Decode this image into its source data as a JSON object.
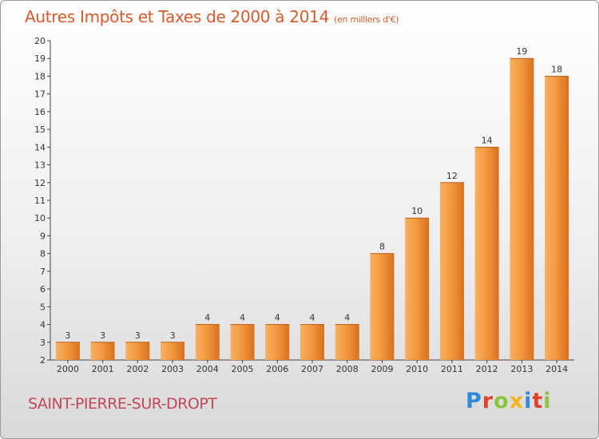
{
  "header": {
    "title": "Autres Impôts et Taxes de 2000 à 2014",
    "unit": "(en milliers d'€)"
  },
  "footer": {
    "commune": "SAINT-PIERRE-SUR-DROPT",
    "logo_text": "Proxiti",
    "logo_colors": [
      "#2e8ad8",
      "#e0412a",
      "#8cc63f",
      "#f5b41a",
      "#2e8ad8",
      "#e0412a",
      "#8cc63f"
    ]
  },
  "chart_data": {
    "type": "bar",
    "title": "Autres Impôts et Taxes de 2000 à 2014",
    "subtitle": "(en milliers d'€)",
    "xlabel": "",
    "ylabel": "",
    "categories": [
      "2000",
      "2001",
      "2002",
      "2003",
      "2004",
      "2005",
      "2006",
      "2007",
      "2008",
      "2009",
      "2010",
      "2011",
      "2012",
      "2013",
      "2014"
    ],
    "values": [
      3,
      3,
      3,
      3,
      4,
      4,
      4,
      4,
      4,
      8,
      10,
      12,
      14,
      19,
      18
    ],
    "value_labels": [
      "3",
      "3",
      "3",
      "3",
      "4",
      "4",
      "4",
      "4",
      "4",
      "8",
      "10",
      "12",
      "14",
      "19",
      "18"
    ],
    "ylim": [
      2,
      20
    ],
    "yticks": [
      "2",
      "3",
      "4",
      "5",
      "6",
      "7",
      "8",
      "9",
      "10",
      "11",
      "12",
      "13",
      "14",
      "15",
      "16",
      "17",
      "18",
      "19",
      "20"
    ],
    "grid": false,
    "bar_color": "#f39a40",
    "bar_color_dark": "#d9701f"
  }
}
